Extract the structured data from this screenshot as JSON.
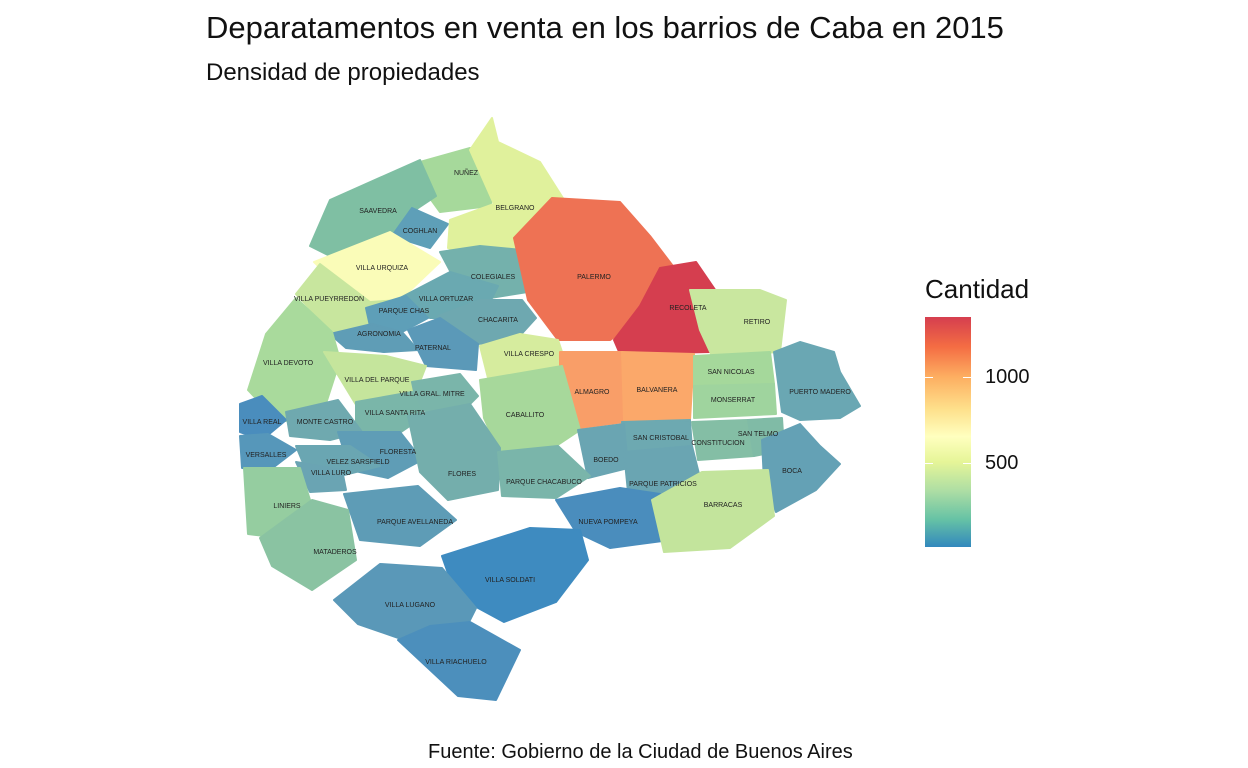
{
  "title": "Deparatamentos en venta en los barrios de Caba en 2015",
  "subtitle": "Densidad de propiedades",
  "caption": "Fuente: Gobierno de la Ciudad de Buenos Aires",
  "legend": {
    "title": "Cantidad",
    "ticks": [
      "1000",
      "500"
    ]
  },
  "neighborhoods": [
    {
      "id": "nunez",
      "label": "NUÑEZ",
      "color": "#a6d99b"
    },
    {
      "id": "saavedra",
      "label": "SAAVEDRA",
      "color": "#7fbfa3"
    },
    {
      "id": "coghlan",
      "label": "COGHLAN",
      "color": "#5e9fb8"
    },
    {
      "id": "belgrano",
      "label": "BELGRANO",
      "color": "#e0f19c"
    },
    {
      "id": "villa_urquiza",
      "label": "VILLA URQUIZA",
      "color": "#fafcb8"
    },
    {
      "id": "colegiales",
      "label": "COLEGIALES",
      "color": "#74b1ac"
    },
    {
      "id": "palermo",
      "label": "PALERMO",
      "color": "#ee7254"
    },
    {
      "id": "recoleta",
      "label": "RECOLETA",
      "color": "#d53e4f"
    },
    {
      "id": "retiro",
      "label": "RETIRO",
      "color": "#c9e79f"
    },
    {
      "id": "villa_pueyrredon",
      "label": "VILLA PUEYRREDON",
      "color": "#c8e69e"
    },
    {
      "id": "villa_ortuzar",
      "label": "VILLA ORTUZAR",
      "color": "#6aa9b1"
    },
    {
      "id": "parque_chas",
      "label": "PARQUE CHAS",
      "color": "#5e9fb8"
    },
    {
      "id": "agronomia",
      "label": "AGRONOMIA",
      "color": "#5f9db6"
    },
    {
      "id": "chacarita",
      "label": "CHACARITA",
      "color": "#6ea8b0"
    },
    {
      "id": "paternal",
      "label": "PATERNAL",
      "color": "#5b99b8"
    },
    {
      "id": "villa_crespo",
      "label": "VILLA CRESPO",
      "color": "#d6ec9e"
    },
    {
      "id": "villa_devoto",
      "label": "VILLA DEVOTO",
      "color": "#a9da9c"
    },
    {
      "id": "villa_del_parque",
      "label": "VILLA DEL PARQUE",
      "color": "#c5e59c"
    },
    {
      "id": "almagro",
      "label": "ALMAGRO",
      "color": "#f99e68"
    },
    {
      "id": "balvanera",
      "label": "BALVANERA",
      "color": "#fba86a"
    },
    {
      "id": "san_nicolas",
      "label": "SAN NICOLAS",
      "color": "#a5d89b"
    },
    {
      "id": "monserrat",
      "label": "MONSERRAT",
      "color": "#9fd49e"
    },
    {
      "id": "puerto_madero",
      "label": "PUERTO MADERO",
      "color": "#6aa7b3"
    },
    {
      "id": "villa_gral_mitre",
      "label": "VILLA GRAL. MITRE",
      "color": "#7ab5aa"
    },
    {
      "id": "villa_santa_rita",
      "label": "VILLA SANTA RITA",
      "color": "#7ab6a9"
    },
    {
      "id": "caballito",
      "label": "CABALLITO",
      "color": "#a7d89b"
    },
    {
      "id": "villa_real",
      "label": "VILLA REAL",
      "color": "#4a8dbd"
    },
    {
      "id": "monte_castro",
      "label": "MONTE CASTRO",
      "color": "#6fa9af"
    },
    {
      "id": "versalles",
      "label": "VERSALLES",
      "color": "#5697ba"
    },
    {
      "id": "floresta",
      "label": "FLORESTA",
      "color": "#5f9db6"
    },
    {
      "id": "velez_sarsfield",
      "label": "VELEZ SARSFIELD",
      "color": "#6aa6b2"
    },
    {
      "id": "villa_luro",
      "label": "VILLA LURO",
      "color": "#6aa4b3"
    },
    {
      "id": "flores",
      "label": "FLORES",
      "color": "#74aeac"
    },
    {
      "id": "san_cristobal",
      "label": "SAN CRISTOBAL",
      "color": "#6da9b1"
    },
    {
      "id": "constitucion",
      "label": "CONSTITUCION",
      "color": "#84bea5"
    },
    {
      "id": "san_telmo",
      "label": "SAN TELMO",
      "color": "#80bba6"
    },
    {
      "id": "boedo",
      "label": "BOEDO",
      "color": "#6aa5b2"
    },
    {
      "id": "parque_chacabuco",
      "label": "PARQUE CHACABUCO",
      "color": "#7ab5aa"
    },
    {
      "id": "parque_patricios",
      "label": "PARQUE PATRICIOS",
      "color": "#6aa5b2"
    },
    {
      "id": "boca",
      "label": "BOCA",
      "color": "#64a1b5"
    },
    {
      "id": "liniers",
      "label": "LINIERS",
      "color": "#95cda0"
    },
    {
      "id": "parque_avellaneda",
      "label": "PARQUE AVELLANEDA",
      "color": "#5e9cb6"
    },
    {
      "id": "nueva_pompeya",
      "label": "NUEVA POMPEYA",
      "color": "#4a8dbd"
    },
    {
      "id": "barracas",
      "label": "BARRACAS",
      "color": "#c3e49c"
    },
    {
      "id": "mataderos",
      "label": "MATADEROS",
      "color": "#8ac3a2"
    },
    {
      "id": "villa_soldati",
      "label": "VILLA SOLDATI",
      "color": "#3e8bc0"
    },
    {
      "id": "villa_lugano",
      "label": "VILLA LUGANO",
      "color": "#5a98b8"
    },
    {
      "id": "villa_riachuelo",
      "label": "VILLA RIACHUELO",
      "color": "#4c8fbc"
    }
  ]
}
